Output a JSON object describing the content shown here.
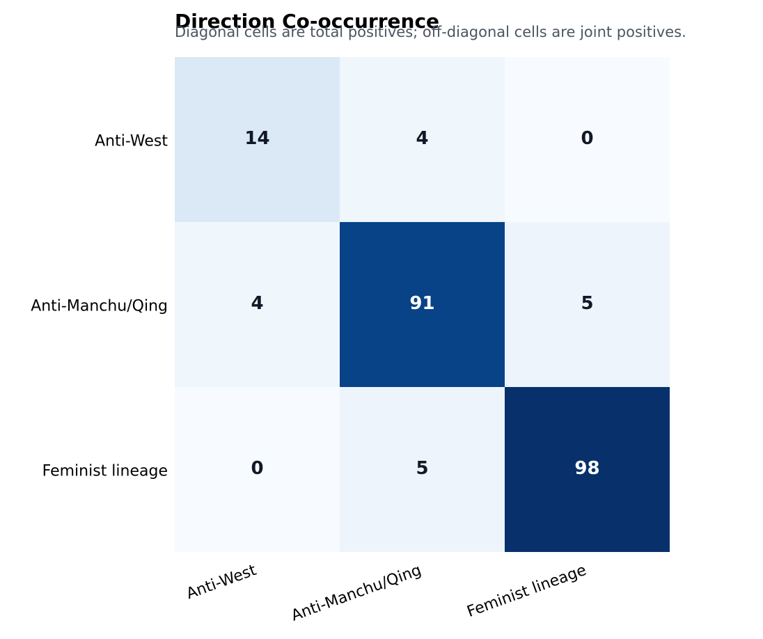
{
  "chart_data": {
    "type": "heatmap",
    "title": "Direction Co-occurrence",
    "subtitle": "Diagonal cells are total positives; off-diagonal cells are joint positives.",
    "x_categories": [
      "Anti-West",
      "Anti-Manchu/Qing",
      "Feminist lineage"
    ],
    "y_categories": [
      "Anti-West",
      "Anti-Manchu/Qing",
      "Feminist lineage"
    ],
    "values": [
      [
        14,
        4,
        0
      ],
      [
        4,
        91,
        5
      ],
      [
        0,
        5,
        98
      ]
    ],
    "colormap": [
      "#f7fbff",
      "#deebf7",
      "#c6dbef",
      "#9ecae1",
      "#6baed6",
      "#4292c6",
      "#2171b5",
      "#08519c",
      "#08306b"
    ]
  }
}
